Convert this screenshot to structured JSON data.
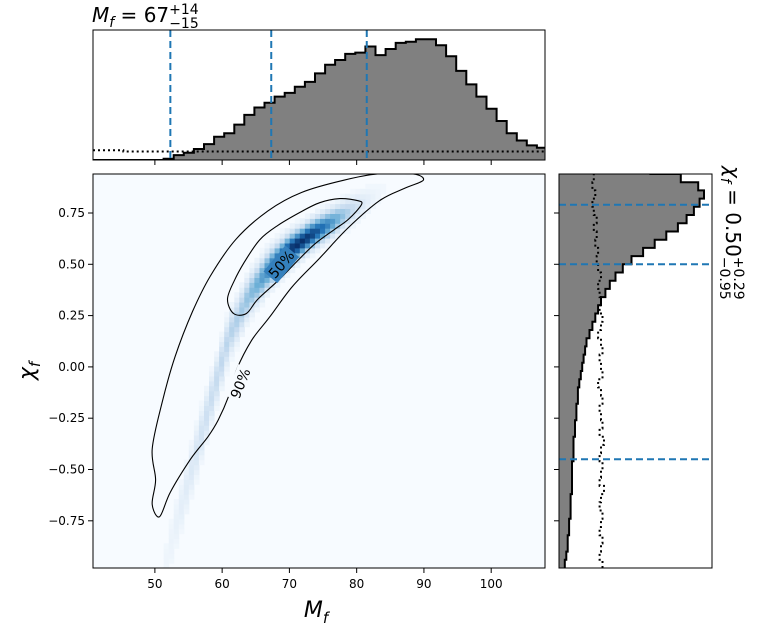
{
  "chart_data": [
    {
      "type": "histogram",
      "panel": "top-marginal",
      "parameter": "M_f",
      "title": {
        "base": "M",
        "sub": "f",
        "value": "67",
        "sup": "+14",
        "sub2": "−15"
      },
      "bins": {
        "start": 40.8,
        "width": 1.5
      },
      "posterior_heights": [
        0,
        0,
        0,
        0,
        0,
        0,
        0,
        0.01,
        0.04,
        0.06,
        0.09,
        0.13,
        0.19,
        0.22,
        0.29,
        0.37,
        0.43,
        0.47,
        0.52,
        0.55,
        0.6,
        0.64,
        0.71,
        0.78,
        0.82,
        0.87,
        0.88,
        0.93,
        0.86,
        0.91,
        0.96,
        0.97,
        0.99,
        0.99,
        0.94,
        0.85,
        0.73,
        0.62,
        0.52,
        0.42,
        0.32,
        0.22,
        0.16,
        0.12,
        0.1,
        0.08,
        0.06,
        0.05,
        0.03,
        0.02,
        0.01,
        0.01,
        0.01,
        0,
        0,
        0,
        0,
        0,
        0,
        0,
        0,
        0,
        0,
        0
      ],
      "prior_heights": [
        0.08,
        0.08,
        0.08,
        0.07,
        0.07,
        0.07,
        0.07,
        0.07,
        0.07,
        0.07,
        0.07,
        0.07,
        0.07,
        0.07,
        0.07,
        0.07,
        0.07,
        0.07,
        0.07,
        0.07,
        0.07,
        0.07,
        0.07,
        0.07,
        0.07,
        0.07,
        0.07,
        0.07,
        0.07,
        0.07,
        0.07,
        0.07,
        0.07,
        0.07,
        0.07,
        0.07,
        0.07,
        0.07,
        0.07,
        0.07,
        0.07,
        0.07,
        0.07,
        0.07,
        0.07,
        0.06,
        0.06,
        0.06,
        0.05,
        0.05,
        0.05,
        0.05,
        0.05,
        0.06,
        0.06,
        0.06,
        0.08,
        0.09,
        0.09,
        0.08,
        0.09,
        0.09,
        0.09,
        0.09
      ],
      "credible_lines": [
        52.3,
        67.3,
        81.5
      ]
    },
    {
      "type": "heatmap",
      "panel": "joint",
      "xlabel": {
        "base": "M",
        "sub": "f"
      },
      "ylabel": {
        "base": "χ",
        "sub": "f"
      },
      "xlim": [
        40.8,
        108
      ],
      "ylim": [
        -0.98,
        0.94
      ],
      "xticks": [
        50,
        60,
        70,
        80,
        90,
        100
      ],
      "yticks": [
        -0.75,
        -0.5,
        -0.25,
        0.0,
        0.25,
        0.5,
        0.75
      ],
      "ytick_labels": [
        "−0.75",
        "−0.50",
        "−0.25",
        "0.00",
        "0.25",
        "0.50",
        "0.75"
      ],
      "colormap": [
        "#f7fbff",
        "#c6dbef",
        "#6baed6",
        "#2171b5",
        "#08306b"
      ],
      "density_ridge": [
        [
          58,
          -0.2
        ],
        [
          61,
          0.15
        ],
        [
          64,
          0.35
        ],
        [
          67,
          0.48
        ],
        [
          70,
          0.57
        ],
        [
          73,
          0.64
        ],
        [
          76,
          0.7
        ],
        [
          79,
          0.76
        ]
      ],
      "contours": [
        {
          "label": "50%",
          "label_at": [
            68.8,
            0.5
          ],
          "label_angle": -50,
          "points": [
            [
              61.7,
              0.26
            ],
            [
              63.6,
              0.26
            ],
            [
              65.3,
              0.33
            ],
            [
              68.3,
              0.42
            ],
            [
              71,
              0.51
            ],
            [
              73.8,
              0.6
            ],
            [
              76.7,
              0.67
            ],
            [
              78.8,
              0.72
            ],
            [
              80.7,
              0.79
            ],
            [
              80.2,
              0.81
            ],
            [
              77.5,
              0.82
            ],
            [
              74.5,
              0.8
            ],
            [
              71.4,
              0.75
            ],
            [
              68.3,
              0.69
            ],
            [
              65.6,
              0.62
            ],
            [
              63.3,
              0.51
            ],
            [
              61.8,
              0.42
            ],
            [
              60.8,
              0.33
            ]
          ]
        },
        {
          "label": "90%",
          "label_at": [
            62.7,
            -0.08
          ],
          "label_angle": -68,
          "points": [
            [
              50.7,
              -0.73
            ],
            [
              52.3,
              -0.61
            ],
            [
              55.3,
              -0.45
            ],
            [
              57.9,
              -0.34
            ],
            [
              59.4,
              -0.26
            ],
            [
              61,
              -0.14
            ],
            [
              62.2,
              -0.01
            ],
            [
              64.4,
              0.13
            ],
            [
              67,
              0.24
            ],
            [
              70.4,
              0.39
            ],
            [
              74.5,
              0.53
            ],
            [
              78.8,
              0.68
            ],
            [
              83.4,
              0.81
            ],
            [
              87.1,
              0.87
            ],
            [
              89.9,
              0.91
            ],
            [
              88.4,
              0.94
            ],
            [
              83.1,
              0.94
            ],
            [
              78.1,
              0.91
            ],
            [
              71.8,
              0.85
            ],
            [
              66.8,
              0.76
            ],
            [
              62,
              0.62
            ],
            [
              58.2,
              0.44
            ],
            [
              55.6,
              0.27
            ],
            [
              53,
              0.05
            ],
            [
              51.1,
              -0.17
            ],
            [
              49.6,
              -0.4
            ],
            [
              50.1,
              -0.55
            ],
            [
              49.6,
              -0.67
            ]
          ]
        }
      ]
    },
    {
      "type": "histogram",
      "panel": "right-marginal",
      "parameter": "chi_f",
      "title": {
        "base": "χ",
        "sub": "f",
        "value": "0.50",
        "sup": "+0.29",
        "sub2": "−0.95"
      },
      "bins": {
        "start": -0.98,
        "width": 0.04
      },
      "posterior_heights": [
        0.04,
        0.05,
        0.06,
        0.06,
        0.07,
        0.07,
        0.08,
        0.08,
        0.08,
        0.09,
        0.09,
        0.09,
        0.09,
        0.1,
        0.1,
        0.1,
        0.11,
        0.11,
        0.12,
        0.12,
        0.13,
        0.13,
        0.14,
        0.15,
        0.16,
        0.17,
        0.18,
        0.19,
        0.21,
        0.23,
        0.25,
        0.27,
        0.29,
        0.32,
        0.35,
        0.39,
        0.44,
        0.5,
        0.58,
        0.66,
        0.74,
        0.82,
        0.88,
        0.93,
        0.97,
        1.0,
        0.96,
        0.84,
        0.63,
        0.41,
        0.27,
        0.16,
        0.09
      ],
      "prior_heights": [
        0.3,
        0.28,
        0.29,
        0.3,
        0.28,
        0.29,
        0.3,
        0.28,
        0.29,
        0.31,
        0.28,
        0.29,
        0.3,
        0.28,
        0.29,
        0.31,
        0.28,
        0.3,
        0.29,
        0.28,
        0.3,
        0.29,
        0.27,
        0.3,
        0.29,
        0.28,
        0.3,
        0.29,
        0.27,
        0.29,
        0.3,
        0.28,
        0.29,
        0.28,
        0.27,
        0.29,
        0.27,
        0.26,
        0.27,
        0.25,
        0.26,
        0.24,
        0.26,
        0.24,
        0.23,
        0.25,
        0.23,
        0.24,
        0.22,
        0.24,
        0.23,
        0.25,
        0.24
      ],
      "credible_lines": [
        -0.45,
        0.5,
        0.79
      ]
    }
  ]
}
